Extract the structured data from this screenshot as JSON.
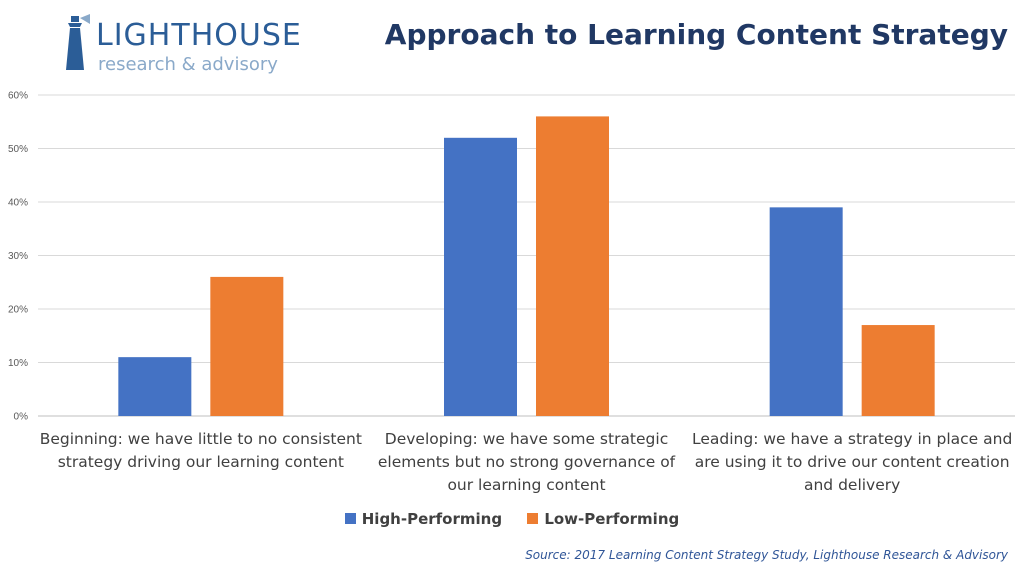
{
  "logo": {
    "name": "LIGHTHOUSE",
    "tagline": "research & advisory"
  },
  "colors": {
    "high": "#4472c4",
    "low": "#ed7d31",
    "title": "#203864",
    "source": "#2f5597",
    "grid": "#d9d9d9"
  },
  "source": "Source: 2017 Learning Content Strategy Study, Lighthouse Research & Advisory",
  "chart_data": {
    "type": "bar",
    "title": "Approach to Learning Content Strategy",
    "categories": [
      "Beginning: we have little to no consistent strategy driving our learning content",
      "Developing: we have some strategic elements but no strong governance of our learning content",
      "Leading: we have a strategy in place and are using it to drive our content creation and delivery"
    ],
    "category_lines": [
      [
        "Beginning: we have little to no consistent",
        "strategy driving our learning content"
      ],
      [
        "Developing: we have some strategic",
        "elements but no strong governance of",
        "our learning content"
      ],
      [
        "Leading: we have a strategy in place and",
        "are using it to drive our content creation",
        "and delivery"
      ]
    ],
    "series": [
      {
        "name": "High-Performing",
        "values": [
          11,
          52,
          39
        ]
      },
      {
        "name": "Low-Performing",
        "values": [
          26,
          56,
          17
        ]
      }
    ],
    "ylim": [
      0,
      60
    ],
    "yticks": [
      "0%",
      "10%",
      "20%",
      "30%",
      "40%",
      "50%",
      "60%"
    ],
    "grid": true,
    "legend": "bottom"
  }
}
